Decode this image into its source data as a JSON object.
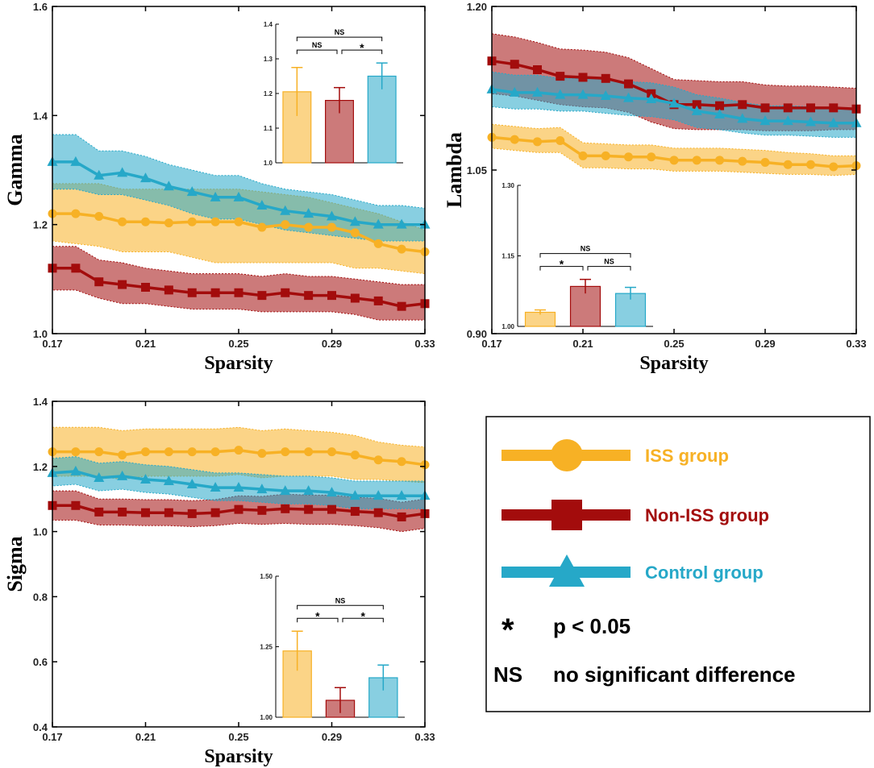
{
  "colors": {
    "iss": "#F7B125",
    "noniss": "#A30C0C",
    "control": "#26A8C8"
  },
  "legend": {
    "items": [
      {
        "label": "ISS group",
        "marker": "circle",
        "color": "#F7B125"
      },
      {
        "label": "Non-ISS group",
        "marker": "square",
        "color": "#A30C0C"
      },
      {
        "label": "Control group",
        "marker": "triangle",
        "color": "#26A8C8"
      }
    ],
    "star_symbol": "*",
    "star_text": "p < 0.05",
    "ns_symbol": "NS",
    "ns_text": "no significant difference"
  },
  "chart_data": [
    {
      "type": "line",
      "title": "",
      "xlabel": "Sparsity",
      "ylabel": "Gamma",
      "xlim": [
        0.17,
        0.33
      ],
      "ylim": [
        1.0,
        1.6
      ],
      "xticks": [
        "0.17",
        "0.21",
        "0.25",
        "0.29",
        "0.33"
      ],
      "yticks": [
        "1.0",
        "1.2",
        "1.4",
        "1.6"
      ],
      "x": [
        0.17,
        0.18,
        0.19,
        0.2,
        0.21,
        0.22,
        0.23,
        0.24,
        0.25,
        0.26,
        0.27,
        0.28,
        0.29,
        0.3,
        0.31,
        0.32,
        0.33
      ],
      "series": [
        {
          "name": "ISS group",
          "marker": "circle",
          "values": [
            1.22,
            1.22,
            1.215,
            1.205,
            1.205,
            1.203,
            1.205,
            1.205,
            1.205,
            1.195,
            1.2,
            1.195,
            1.195,
            1.185,
            1.165,
            1.155,
            1.15
          ],
          "lower": [
            1.17,
            1.165,
            1.16,
            1.15,
            1.15,
            1.15,
            1.14,
            1.13,
            1.13,
            1.13,
            1.13,
            1.13,
            1.13,
            1.12,
            1.12,
            1.115,
            1.11
          ],
          "upper": [
            1.275,
            1.275,
            1.275,
            1.265,
            1.265,
            1.265,
            1.265,
            1.265,
            1.265,
            1.26,
            1.255,
            1.25,
            1.24,
            1.23,
            1.22,
            1.205,
            1.19
          ]
        },
        {
          "name": "Non-ISS group",
          "marker": "square",
          "values": [
            1.12,
            1.12,
            1.095,
            1.09,
            1.085,
            1.08,
            1.075,
            1.075,
            1.075,
            1.07,
            1.075,
            1.07,
            1.07,
            1.065,
            1.06,
            1.05,
            1.055
          ],
          "lower": [
            1.08,
            1.08,
            1.065,
            1.055,
            1.055,
            1.05,
            1.045,
            1.045,
            1.045,
            1.04,
            1.04,
            1.04,
            1.04,
            1.035,
            1.025,
            1.025,
            1.025
          ],
          "upper": [
            1.16,
            1.16,
            1.135,
            1.13,
            1.12,
            1.115,
            1.11,
            1.11,
            1.11,
            1.105,
            1.11,
            1.105,
            1.105,
            1.1,
            1.095,
            1.09,
            1.09
          ]
        },
        {
          "name": "Control group",
          "marker": "triangle",
          "values": [
            1.315,
            1.315,
            1.29,
            1.295,
            1.285,
            1.27,
            1.26,
            1.25,
            1.25,
            1.235,
            1.225,
            1.22,
            1.215,
            1.205,
            1.2,
            1.2,
            1.2
          ],
          "lower": [
            1.265,
            1.265,
            1.255,
            1.255,
            1.245,
            1.235,
            1.22,
            1.21,
            1.21,
            1.2,
            1.19,
            1.185,
            1.18,
            1.175,
            1.17,
            1.17,
            1.17
          ],
          "upper": [
            1.365,
            1.365,
            1.335,
            1.335,
            1.325,
            1.31,
            1.3,
            1.29,
            1.29,
            1.275,
            1.265,
            1.26,
            1.255,
            1.245,
            1.235,
            1.235,
            1.23
          ]
        }
      ],
      "inset": {
        "type": "bar",
        "categories": [
          "ISS group",
          "Non-ISS group",
          "Control group"
        ],
        "values": [
          1.205,
          1.18,
          1.25
        ],
        "errors": [
          0.07,
          0.037,
          0.038
        ],
        "ylim": [
          1.0,
          1.4
        ],
        "yticks": [
          "1.0",
          "1.1",
          "1.2",
          "1.3",
          "1.4"
        ],
        "brackets": [
          {
            "from": 0,
            "to": 1,
            "label": "NS"
          },
          {
            "from": 1,
            "to": 2,
            "label": "*"
          },
          {
            "from": 0,
            "to": 2,
            "label": "NS"
          }
        ]
      }
    },
    {
      "type": "line",
      "title": "",
      "xlabel": "Sparsity",
      "ylabel": "Lambda",
      "xlim": [
        0.17,
        0.33
      ],
      "ylim": [
        0.9,
        1.2
      ],
      "xticks": [
        "0.17",
        "0.21",
        "0.25",
        "0.29",
        "0.33"
      ],
      "yticks": [
        "0.90",
        "1.05",
        "1.20"
      ],
      "x": [
        0.17,
        0.18,
        0.19,
        0.2,
        0.21,
        0.22,
        0.23,
        0.24,
        0.25,
        0.26,
        0.27,
        0.28,
        0.29,
        0.3,
        0.31,
        0.32,
        0.33
      ],
      "series": [
        {
          "name": "ISS group",
          "marker": "circle",
          "values": [
            1.08,
            1.078,
            1.076,
            1.077,
            1.063,
            1.063,
            1.062,
            1.062,
            1.059,
            1.059,
            1.059,
            1.058,
            1.057,
            1.055,
            1.055,
            1.053,
            1.054
          ],
          "lower": [
            1.07,
            1.068,
            1.066,
            1.066,
            1.052,
            1.052,
            1.051,
            1.051,
            1.049,
            1.049,
            1.049,
            1.048,
            1.047,
            1.046,
            1.046,
            1.045,
            1.046
          ],
          "upper": [
            1.092,
            1.09,
            1.088,
            1.089,
            1.075,
            1.074,
            1.073,
            1.073,
            1.07,
            1.07,
            1.07,
            1.069,
            1.068,
            1.066,
            1.065,
            1.063,
            1.063
          ]
        },
        {
          "name": "Non-ISS group",
          "marker": "square",
          "values": [
            1.15,
            1.147,
            1.142,
            1.136,
            1.135,
            1.134,
            1.129,
            1.12,
            1.11,
            1.11,
            1.109,
            1.11,
            1.107,
            1.107,
            1.107,
            1.107,
            1.106
          ],
          "lower": [
            1.12,
            1.118,
            1.114,
            1.11,
            1.108,
            1.107,
            1.103,
            1.094,
            1.088,
            1.087,
            1.087,
            1.087,
            1.086,
            1.086,
            1.086,
            1.087,
            1.087
          ],
          "upper": [
            1.175,
            1.172,
            1.167,
            1.161,
            1.16,
            1.158,
            1.153,
            1.143,
            1.133,
            1.132,
            1.131,
            1.131,
            1.128,
            1.127,
            1.127,
            1.126,
            1.125
          ]
        },
        {
          "name": "Control group",
          "marker": "triangle",
          "values": [
            1.124,
            1.121,
            1.121,
            1.119,
            1.119,
            1.118,
            1.116,
            1.115,
            1.111,
            1.104,
            1.101,
            1.097,
            1.095,
            1.095,
            1.094,
            1.093,
            1.093
          ],
          "lower": [
            1.108,
            1.106,
            1.106,
            1.104,
            1.104,
            1.102,
            1.1,
            1.099,
            1.096,
            1.089,
            1.087,
            1.084,
            1.082,
            1.082,
            1.081,
            1.08,
            1.08
          ],
          "upper": [
            1.14,
            1.137,
            1.137,
            1.134,
            1.134,
            1.133,
            1.131,
            1.13,
            1.126,
            1.119,
            1.116,
            1.112,
            1.109,
            1.109,
            1.108,
            1.107,
            1.106
          ]
        }
      ],
      "inset": {
        "type": "bar",
        "categories": [
          "ISS group",
          "Non-ISS group",
          "Control group"
        ],
        "values": [
          1.03,
          1.085,
          1.07
        ],
        "errors": [
          0.005,
          0.015,
          0.013
        ],
        "ylim": [
          1.0,
          1.3
        ],
        "yticks": [
          "1.00",
          "1.15",
          "1.30"
        ],
        "brackets": [
          {
            "from": 0,
            "to": 1,
            "label": "*"
          },
          {
            "from": 1,
            "to": 2,
            "label": "NS"
          },
          {
            "from": 0,
            "to": 2,
            "label": "NS"
          }
        ]
      }
    },
    {
      "type": "line",
      "title": "",
      "xlabel": "Sparsity",
      "ylabel": "Sigma",
      "xlim": [
        0.17,
        0.33
      ],
      "ylim": [
        0.4,
        1.4
      ],
      "xticks": [
        "0.17",
        "0.21",
        "0.25",
        "0.29",
        "0.33"
      ],
      "yticks": [
        "0.4",
        "0.6",
        "0.8",
        "1.0",
        "1.2",
        "1.4"
      ],
      "x": [
        0.17,
        0.18,
        0.19,
        0.2,
        0.21,
        0.22,
        0.23,
        0.24,
        0.25,
        0.26,
        0.27,
        0.28,
        0.29,
        0.3,
        0.31,
        0.32,
        0.33
      ],
      "series": [
        {
          "name": "ISS group",
          "marker": "circle",
          "values": [
            1.245,
            1.245,
            1.245,
            1.235,
            1.245,
            1.245,
            1.245,
            1.245,
            1.25,
            1.24,
            1.245,
            1.245,
            1.245,
            1.235,
            1.22,
            1.215,
            1.205
          ],
          "lower": [
            1.17,
            1.17,
            1.17,
            1.16,
            1.17,
            1.17,
            1.17,
            1.17,
            1.175,
            1.165,
            1.17,
            1.17,
            1.17,
            1.16,
            1.16,
            1.155,
            1.15
          ],
          "upper": [
            1.32,
            1.32,
            1.32,
            1.31,
            1.315,
            1.315,
            1.315,
            1.315,
            1.32,
            1.31,
            1.315,
            1.31,
            1.305,
            1.295,
            1.275,
            1.265,
            1.26
          ]
        },
        {
          "name": "Non-ISS group",
          "marker": "square",
          "values": [
            1.08,
            1.08,
            1.06,
            1.06,
            1.058,
            1.058,
            1.055,
            1.058,
            1.068,
            1.065,
            1.07,
            1.068,
            1.068,
            1.062,
            1.058,
            1.045,
            1.055
          ],
          "lower": [
            1.035,
            1.035,
            1.02,
            1.02,
            1.018,
            1.018,
            1.015,
            1.018,
            1.025,
            1.022,
            1.025,
            1.022,
            1.022,
            1.018,
            1.012,
            1.0,
            1.01
          ],
          "upper": [
            1.125,
            1.125,
            1.1,
            1.1,
            1.098,
            1.098,
            1.095,
            1.098,
            1.11,
            1.108,
            1.115,
            1.112,
            1.112,
            1.105,
            1.102,
            1.09,
            1.1
          ]
        },
        {
          "name": "Control group",
          "marker": "triangle",
          "values": [
            1.18,
            1.185,
            1.165,
            1.17,
            1.16,
            1.155,
            1.145,
            1.135,
            1.135,
            1.13,
            1.125,
            1.125,
            1.12,
            1.11,
            1.11,
            1.11,
            1.11
          ],
          "lower": [
            1.14,
            1.145,
            1.125,
            1.13,
            1.12,
            1.115,
            1.105,
            1.095,
            1.095,
            1.09,
            1.085,
            1.085,
            1.08,
            1.07,
            1.07,
            1.07,
            1.07
          ],
          "upper": [
            1.225,
            1.23,
            1.21,
            1.215,
            1.205,
            1.2,
            1.19,
            1.18,
            1.18,
            1.175,
            1.17,
            1.17,
            1.165,
            1.155,
            1.155,
            1.155,
            1.155
          ]
        }
      ],
      "inset": {
        "type": "bar",
        "categories": [
          "ISS group",
          "Non-ISS group",
          "Control group"
        ],
        "values": [
          1.235,
          1.06,
          1.14
        ],
        "errors": [
          0.07,
          0.045,
          0.045
        ],
        "ylim": [
          1.0,
          1.5
        ],
        "yticks": [
          "1.00",
          "1.25",
          "1.50"
        ],
        "brackets": [
          {
            "from": 0,
            "to": 1,
            "label": "*"
          },
          {
            "from": 1,
            "to": 2,
            "label": "*"
          },
          {
            "from": 0,
            "to": 2,
            "label": "NS"
          }
        ]
      }
    }
  ]
}
